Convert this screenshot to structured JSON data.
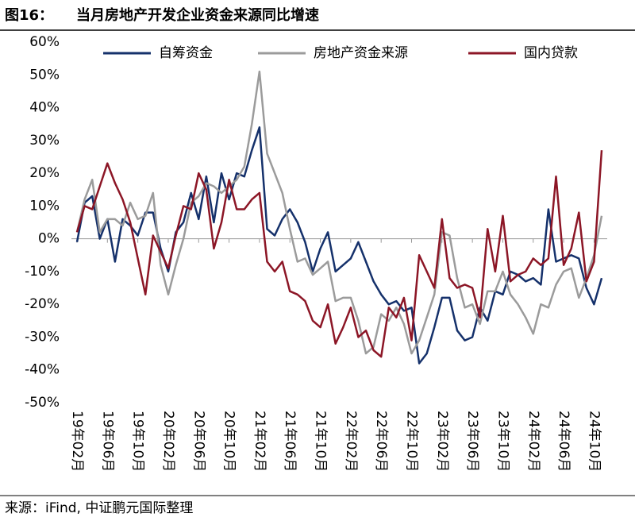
{
  "chart_data": {
    "type": "line",
    "figure_label": "图16：",
    "title": "当月房地产开发企业资金来源同比增速",
    "source": "来源：iFind, 中证鹏元国际整理",
    "categories": [
      "19年02月",
      null,
      null,
      null,
      "19年06月",
      null,
      null,
      null,
      "19年10月",
      null,
      null,
      null,
      "20年02月",
      null,
      null,
      null,
      "20年06月",
      null,
      null,
      null,
      "20年10月",
      null,
      null,
      null,
      "21年02月",
      null,
      null,
      null,
      "21年06月",
      null,
      null,
      null,
      "21年10月",
      null,
      null,
      null,
      "22年02月",
      null,
      null,
      null,
      "22年06月",
      null,
      null,
      null,
      "22年10月",
      null,
      null,
      null,
      "23年02月",
      null,
      null,
      null,
      "23年06月",
      null,
      null,
      null,
      "23年10月",
      null,
      null,
      null,
      "24年02月",
      null,
      null,
      null,
      "24年06月",
      null,
      null,
      null,
      "24年10月",
      null
    ],
    "series": [
      {
        "name": "自筹资金",
        "color": "#15316b",
        "values": [
          -1,
          11,
          13,
          0,
          6,
          -7,
          6,
          4,
          1,
          8,
          8,
          -3,
          -10,
          2,
          5,
          14,
          6,
          19,
          5,
          20,
          12,
          20,
          19,
          27,
          34,
          3,
          1,
          6,
          9,
          5,
          -1,
          -10,
          -3,
          2,
          -10,
          -8,
          -6,
          -1,
          -7,
          -13,
          -17,
          -20,
          -19,
          -22,
          -21,
          -38,
          -35,
          -27,
          -18,
          -18,
          -28,
          -31,
          -30,
          -21,
          -25,
          -16,
          -17,
          -10,
          -11,
          -13,
          -12,
          -14,
          9,
          -7,
          -6,
          -5,
          -6,
          -15,
          -20,
          -12
        ]
      },
      {
        "name": "房地产资金来源",
        "color": "#9b9b9b",
        "values": [
          2,
          12,
          18,
          2,
          6,
          6,
          4,
          11,
          6,
          7,
          14,
          -8,
          -17,
          -8,
          0,
          11,
          13,
          17,
          16,
          14,
          16,
          18,
          22,
          35,
          51,
          26,
          20,
          14,
          3,
          -7,
          -6,
          -11,
          -9,
          -7,
          -19,
          -18,
          -18,
          -25,
          -35,
          -33,
          -23,
          -25,
          -21,
          -26,
          -35,
          -31,
          -24,
          -17,
          2,
          1,
          -12,
          -21,
          -20,
          -26,
          -16,
          -16,
          -10,
          -17,
          -20,
          -24,
          -29,
          -20,
          -21,
          -14,
          -10,
          -9,
          -18,
          -12,
          -5,
          7
        ]
      },
      {
        "name": "国内贷款",
        "color": "#8c1626",
        "values": [
          2,
          10,
          9,
          16,
          23,
          17,
          12,
          5,
          -6,
          -17,
          1,
          -4,
          -9,
          1,
          10,
          9,
          20,
          15,
          -3,
          5,
          18,
          9,
          9,
          12,
          14,
          -7,
          -10,
          -7,
          -16,
          -17,
          -19,
          -25,
          -27,
          -20,
          -32,
          -27,
          -21,
          -30,
          -28,
          -34,
          -36,
          -21,
          -24,
          -18,
          -31,
          -5,
          -10,
          -15,
          6,
          -12,
          -15,
          -14,
          -15,
          -24,
          3,
          -10,
          7,
          -13,
          -11,
          -10,
          -6,
          -8,
          -6,
          19,
          -8,
          -3,
          8,
          -13,
          -7,
          27
        ]
      }
    ],
    "ylim": [
      -50,
      60
    ],
    "yticks": [
      {
        "value": -50,
        "label": "-50%"
      },
      {
        "value": -40,
        "label": "-40%"
      },
      {
        "value": -30,
        "label": "-30%"
      },
      {
        "value": -20,
        "label": "-20%"
      },
      {
        "value": -10,
        "label": "-10%"
      },
      {
        "value": 0,
        "label": "0%"
      },
      {
        "value": 10,
        "label": "10%"
      },
      {
        "value": 20,
        "label": "20%"
      },
      {
        "value": 30,
        "label": "30%"
      },
      {
        "value": 40,
        "label": "40%"
      },
      {
        "value": 50,
        "label": "50%"
      },
      {
        "value": 60,
        "label": "60%"
      }
    ],
    "grid": false,
    "legend": "top"
  }
}
